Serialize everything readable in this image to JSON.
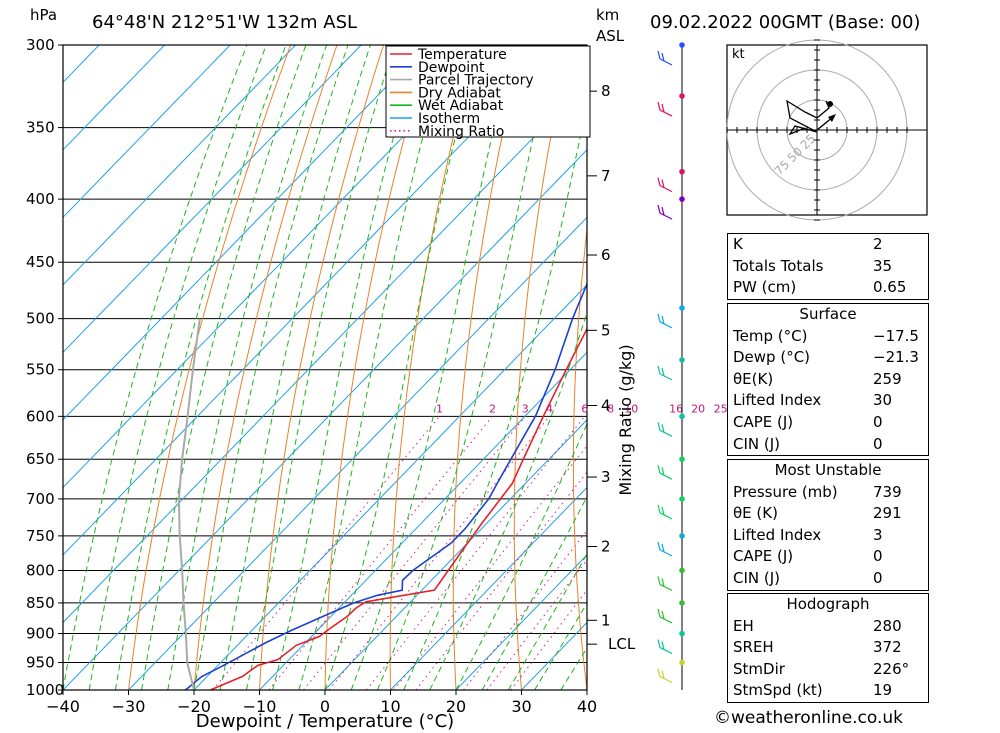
{
  "header": {
    "location": "64°48'N  212°51'W  132m  ASL",
    "datetime": "09.02.2022  00GMT  (Base: 00)",
    "hpa_label": "hPa",
    "km_label": "km",
    "asl_label": "ASL"
  },
  "chart_data": {
    "type": "line",
    "xlabel": "Dewpoint / Temperature (°C)",
    "ylabel_right": "Mixing Ratio (g/kg)",
    "xlim": [
      -40,
      40
    ],
    "ylim": [
      1000,
      300
    ],
    "x_ticks": [
      "−40",
      "−30",
      "−20",
      "−10",
      "0",
      "10",
      "20",
      "30",
      "40"
    ],
    "pressure_levels": [
      300,
      350,
      400,
      450,
      500,
      550,
      600,
      650,
      700,
      750,
      800,
      850,
      900,
      950,
      1000
    ],
    "km_ticks": [
      {
        "label": "8",
        "p": 327
      },
      {
        "label": "7",
        "p": 383
      },
      {
        "label": "6",
        "p": 444
      },
      {
        "label": "5",
        "p": 511
      },
      {
        "label": "4",
        "p": 588
      },
      {
        "label": "3",
        "p": 672
      },
      {
        "label": "2",
        "p": 765
      },
      {
        "label": "1",
        "p": 878
      },
      {
        "label": "LCL",
        "p": 918
      }
    ],
    "mixing_ratio_labels": [
      "1",
      "2",
      "3",
      "4",
      "6",
      "8",
      "10",
      "16",
      "20",
      "25"
    ],
    "mixing_ratios": [
      1,
      2,
      3,
      4,
      6,
      8,
      10,
      16,
      20,
      25
    ],
    "legend": [
      "Temperature",
      "Dewpoint",
      "Parcel Trajectory",
      "Dry Adiabat",
      "Wet Adiabat",
      "Isotherm",
      "Mixing Ratio"
    ],
    "series": [
      {
        "name": "Temperature",
        "color": "#e8202a",
        "points": [
          [
            1000,
            -17.5
          ],
          [
            975,
            -14.6
          ],
          [
            955,
            -13.9
          ],
          [
            945,
            -11.7
          ],
          [
            920,
            -11
          ],
          [
            905,
            -8.8
          ],
          [
            890,
            -8.3
          ],
          [
            872,
            -7.5
          ],
          [
            858,
            -7.4
          ],
          [
            848,
            -6.8
          ],
          [
            830,
            1.9
          ],
          [
            818,
            1.6
          ],
          [
            800,
            1.1
          ],
          [
            760,
            0
          ],
          [
            730,
            -0.8
          ],
          [
            700,
            -1.5
          ],
          [
            680,
            -2
          ],
          [
            650,
            -3.9
          ],
          [
            600,
            -7.2
          ],
          [
            550,
            -10.6
          ],
          [
            500,
            -14.2
          ],
          [
            450,
            -18.9
          ],
          [
            400,
            -24.2
          ],
          [
            380,
            -25.5
          ],
          [
            360,
            -26
          ],
          [
            340,
            -27
          ],
          [
            320,
            -28.5
          ],
          [
            300,
            -29.5
          ]
        ]
      },
      {
        "name": "Dewpoint",
        "color": "#1f3fd0",
        "points": [
          [
            1000,
            -21.3
          ],
          [
            975,
            -20.8
          ],
          [
            960,
            -19.5
          ],
          [
            940,
            -18
          ],
          [
            915,
            -16
          ],
          [
            895,
            -14
          ],
          [
            870,
            -11
          ],
          [
            850,
            -8.5
          ],
          [
            838,
            -6
          ],
          [
            830,
            -3
          ],
          [
            815,
            -4.4
          ],
          [
            800,
            -4.3
          ],
          [
            760,
            -2.5
          ],
          [
            740,
            -2.5
          ],
          [
            700,
            -3.3
          ],
          [
            680,
            -4.3
          ],
          [
            650,
            -5.8
          ],
          [
            600,
            -8.4
          ],
          [
            550,
            -12.3
          ],
          [
            500,
            -17.2
          ],
          [
            470,
            -20
          ],
          [
            443,
            -23
          ],
          [
            433,
            -20.8
          ],
          [
            415,
            -21.5
          ],
          [
            400,
            -22.6
          ],
          [
            390,
            -22
          ],
          [
            383,
            -24
          ],
          [
            372,
            -34
          ],
          [
            350,
            -28
          ],
          [
            340,
            -32
          ],
          [
            340,
            -24
          ],
          [
            324,
            -21
          ],
          [
            318,
            -29
          ],
          [
            310,
            -29
          ],
          [
            305,
            -34
          ],
          [
            300,
            -34
          ]
        ]
      },
      {
        "name": "Parcel Trajectory",
        "color": "#a9a9a9",
        "points": [
          [
            1000,
            -20
          ],
          [
            950,
            -25.1
          ],
          [
            900,
            -29.6
          ],
          [
            850,
            -34.5
          ],
          [
            800,
            -39.5
          ],
          [
            750,
            -45
          ],
          [
            700,
            -50.6
          ],
          [
            650,
            -56
          ],
          [
            600,
            -61.5
          ],
          [
            550,
            -67.6
          ],
          [
            500,
            -74.1
          ]
        ]
      }
    ]
  },
  "wind_barbs": [
    {
      "p": 300,
      "color": "#2050ff"
    },
    {
      "p": 330,
      "color": "#e0106a"
    },
    {
      "p": 380,
      "color": "#e0106a"
    },
    {
      "p": 400,
      "color": "#7a00c0"
    },
    {
      "p": 490,
      "color": "#10a8e0"
    },
    {
      "p": 540,
      "color": "#10c0a0"
    },
    {
      "p": 600,
      "color": "#10c0a0"
    },
    {
      "p": 650,
      "color": "#10d060"
    },
    {
      "p": 700,
      "color": "#10d060"
    },
    {
      "p": 750,
      "color": "#10a8e0"
    },
    {
      "p": 800,
      "color": "#30c030"
    },
    {
      "p": 850,
      "color": "#30c030"
    },
    {
      "p": 900,
      "color": "#10c0a0"
    },
    {
      "p": 950,
      "color": "#c8d030"
    }
  ],
  "hodograph": {
    "unit": "kt",
    "ring_labels": [
      "25",
      "50",
      "75"
    ]
  },
  "indices": {
    "k_label": "K",
    "k": "2",
    "tt_label": "Totals Totals",
    "tt": "35",
    "pw_label": "PW (cm)",
    "pw": "0.65"
  },
  "surface": {
    "title": "Surface",
    "temp_label": "Temp (°C)",
    "temp": "−17.5",
    "dewp_label": "Dewp (°C)",
    "dewp": "−21.3",
    "theta_label": "θE(K)",
    "theta": "259",
    "li_label": "Lifted Index",
    "li": "30",
    "cape_label": "CAPE (J)",
    "cape": "0",
    "cin_label": "CIN (J)",
    "cin": "0"
  },
  "most_unstable": {
    "title": "Most Unstable",
    "pressure_label": "Pressure (mb)",
    "pressure": "739",
    "theta_label": "θE (K)",
    "theta": "291",
    "li_label": "Lifted Index",
    "li": "3",
    "cape_label": "CAPE (J)",
    "cape": "0",
    "cin_label": "CIN (J)",
    "cin": "0"
  },
  "hodo_stats": {
    "title": "Hodograph",
    "eh_label": "EH",
    "eh": "280",
    "sreh_label": "SREH",
    "sreh": "372",
    "stmdir_label": "StmDir",
    "stmdir": "226°",
    "stmspd_label": "StmSpd (kt)",
    "stmspd": "19"
  },
  "footer": "©weatheronline.co.uk"
}
